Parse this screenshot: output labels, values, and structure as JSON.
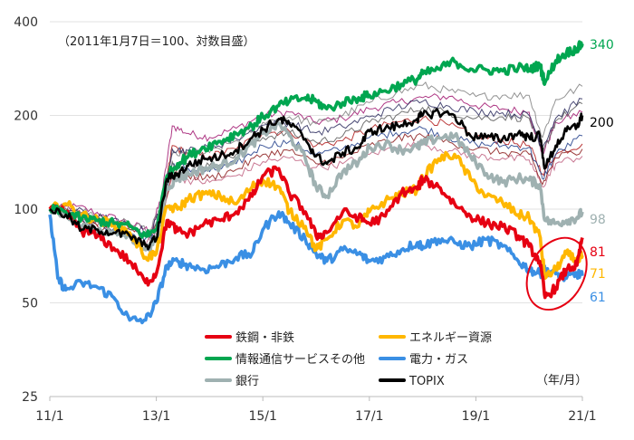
{
  "chart_data": {
    "type": "line",
    "note": "（2011年1月7日＝100、対数目盛）",
    "unit_label": "（年/月）",
    "y_scale": "log",
    "ylim": [
      25,
      400
    ],
    "y_ticks": [
      "25",
      "50",
      "100",
      "200",
      "400"
    ],
    "y_tick_values": [
      25,
      50,
      100,
      200,
      400
    ],
    "x_range": [
      2011.0,
      2021.0
    ],
    "x_ticks": [
      "11/1",
      "13/1",
      "15/1",
      "17/1",
      "19/1",
      "21/1"
    ],
    "x_tick_values": [
      2011.0,
      2013.0,
      2015.0,
      2017.0,
      2019.0,
      2021.0
    ],
    "series": [
      {
        "name": "鉄鋼・非鉄",
        "color": "#e60012",
        "end_label": "81",
        "x": [
          2011.0,
          2011.3,
          2011.6,
          2011.9,
          2012.2,
          2012.5,
          2012.8,
          2013.0,
          2013.2,
          2013.4,
          2013.6,
          2013.9,
          2014.2,
          2014.5,
          2014.8,
          2015.0,
          2015.3,
          2015.5,
          2015.8,
          2016.0,
          2016.2,
          2016.5,
          2016.8,
          2017.0,
          2017.3,
          2017.6,
          2017.9,
          2018.0,
          2018.3,
          2018.6,
          2018.9,
          2019.2,
          2019.5,
          2019.8,
          2020.0,
          2020.2,
          2020.3,
          2020.5,
          2020.7,
          2020.9,
          2021.0
        ],
        "values": [
          100,
          98,
          85,
          82,
          75,
          68,
          58,
          62,
          92,
          85,
          83,
          90,
          92,
          98,
          110,
          128,
          135,
          112,
          98,
          82,
          84,
          98,
          94,
          90,
          95,
          113,
          116,
          125,
          118,
          104,
          95,
          90,
          88,
          82,
          76,
          68,
          52,
          56,
          64,
          66,
          81
        ]
      },
      {
        "name": "エネルギー資源",
        "color": "#ffb700",
        "end_label": "71",
        "x": [
          2011.0,
          2011.3,
          2011.6,
          2011.9,
          2012.2,
          2012.5,
          2012.8,
          2013.0,
          2013.2,
          2013.4,
          2013.6,
          2013.9,
          2014.2,
          2014.5,
          2014.8,
          2015.0,
          2015.3,
          2015.5,
          2015.8,
          2016.0,
          2016.2,
          2016.5,
          2016.8,
          2017.0,
          2017.3,
          2017.6,
          2017.9,
          2018.0,
          2018.3,
          2018.6,
          2018.9,
          2019.2,
          2019.5,
          2019.8,
          2020.0,
          2020.2,
          2020.3,
          2020.5,
          2020.7,
          2020.9,
          2021.0
        ],
        "values": [
          100,
          104,
          96,
          92,
          90,
          84,
          70,
          72,
          102,
          100,
          108,
          112,
          110,
          104,
          118,
          124,
          118,
          98,
          88,
          74,
          80,
          92,
          88,
          98,
          106,
          112,
          116,
          126,
          145,
          150,
          125,
          110,
          105,
          96,
          94,
          82,
          60,
          64,
          72,
          68,
          71
        ]
      },
      {
        "name": "情報通信サービスその他",
        "color": "#00a650",
        "end_label": "340",
        "x": [
          2011.0,
          2011.3,
          2011.6,
          2011.9,
          2012.2,
          2012.5,
          2012.8,
          2013.0,
          2013.2,
          2013.4,
          2013.6,
          2013.9,
          2014.2,
          2014.5,
          2014.8,
          2015.0,
          2015.3,
          2015.5,
          2015.8,
          2016.0,
          2016.2,
          2016.5,
          2016.8,
          2017.0,
          2017.3,
          2017.6,
          2017.9,
          2018.0,
          2018.3,
          2018.6,
          2018.9,
          2019.2,
          2019.5,
          2019.8,
          2020.0,
          2020.2,
          2020.3,
          2020.5,
          2020.7,
          2020.9,
          2021.0
        ],
        "values": [
          100,
          98,
          93,
          92,
          90,
          88,
          82,
          86,
          128,
          140,
          148,
          158,
          165,
          175,
          185,
          198,
          215,
          222,
          228,
          222,
          210,
          220,
          228,
          232,
          240,
          252,
          262,
          272,
          282,
          298,
          282,
          280,
          278,
          285,
          282,
          290,
          255,
          300,
          318,
          328,
          340
        ]
      },
      {
        "name": "電力・ガス",
        "color": "#3a8fe4",
        "end_label": "61",
        "x": [
          2011.0,
          2011.15,
          2011.3,
          2011.6,
          2011.9,
          2012.2,
          2012.5,
          2012.8,
          2013.0,
          2013.2,
          2013.4,
          2013.6,
          2013.9,
          2014.2,
          2014.5,
          2014.8,
          2015.0,
          2015.3,
          2015.5,
          2015.8,
          2016.0,
          2016.2,
          2016.5,
          2016.8,
          2017.0,
          2017.3,
          2017.6,
          2017.9,
          2018.0,
          2018.3,
          2018.6,
          2018.9,
          2019.2,
          2019.5,
          2019.8,
          2020.0,
          2020.2,
          2020.3,
          2020.5,
          2020.7,
          2020.9,
          2021.0
        ],
        "values": [
          96,
          60,
          55,
          58,
          56,
          52,
          44,
          44,
          50,
          66,
          68,
          66,
          64,
          66,
          70,
          72,
          86,
          98,
          90,
          80,
          72,
          68,
          74,
          72,
          68,
          70,
          74,
          78,
          76,
          80,
          78,
          76,
          80,
          76,
          68,
          64,
          62,
          64,
          62,
          60,
          62,
          61
        ]
      },
      {
        "name": "銀行",
        "color": "#9fb1b1",
        "end_label": "98",
        "x": [
          2011.0,
          2011.3,
          2011.6,
          2011.9,
          2012.2,
          2012.5,
          2012.8,
          2013.0,
          2013.2,
          2013.4,
          2013.6,
          2013.9,
          2014.2,
          2014.5,
          2014.8,
          2015.0,
          2015.3,
          2015.5,
          2015.8,
          2016.0,
          2016.2,
          2016.5,
          2016.8,
          2017.0,
          2017.3,
          2017.6,
          2017.9,
          2018.0,
          2018.3,
          2018.6,
          2018.9,
          2019.2,
          2019.5,
          2019.8,
          2020.0,
          2020.2,
          2020.3,
          2020.5,
          2020.7,
          2020.9,
          2021.0
        ],
        "values": [
          100,
          96,
          88,
          86,
          84,
          82,
          74,
          80,
          118,
          125,
          130,
          135,
          138,
          146,
          162,
          175,
          188,
          172,
          145,
          118,
          110,
          132,
          142,
          158,
          162,
          155,
          158,
          162,
          170,
          172,
          148,
          130,
          122,
          126,
          124,
          120,
          92,
          90,
          92,
          94,
          98
        ]
      },
      {
        "name": "TOPIX",
        "color": "#000000",
        "end_label": "200",
        "x": [
          2011.0,
          2011.3,
          2011.6,
          2011.9,
          2012.2,
          2012.5,
          2012.8,
          2013.0,
          2013.2,
          2013.4,
          2013.6,
          2013.9,
          2014.2,
          2014.5,
          2014.8,
          2015.0,
          2015.3,
          2015.5,
          2015.8,
          2016.0,
          2016.2,
          2016.5,
          2016.8,
          2017.0,
          2017.3,
          2017.6,
          2017.9,
          2018.0,
          2018.3,
          2018.6,
          2018.9,
          2019.2,
          2019.5,
          2019.8,
          2020.0,
          2020.2,
          2020.3,
          2020.5,
          2020.7,
          2020.9,
          2021.0
        ],
        "values": [
          100,
          96,
          86,
          86,
          84,
          82,
          76,
          80,
          125,
          130,
          138,
          145,
          148,
          155,
          170,
          180,
          195,
          188,
          168,
          148,
          140,
          152,
          158,
          178,
          182,
          186,
          195,
          200,
          205,
          200,
          172,
          170,
          168,
          176,
          170,
          172,
          135,
          160,
          178,
          185,
          200
        ]
      }
    ],
    "background_series": [
      {
        "color": "#a0146e",
        "x": [
          2011.0,
          2011.5,
          2012.0,
          2012.5,
          2012.9,
          2013.1,
          2013.3,
          2013.6,
          2014.0,
          2014.5,
          2015.0,
          2015.5,
          2016.0,
          2016.5,
          2017.0,
          2017.5,
          2018.0,
          2018.5,
          2019.0,
          2019.5,
          2020.0,
          2020.25,
          2020.5,
          2021.0
        ],
        "values": [
          100,
          102,
          96,
          90,
          85,
          110,
          185,
          175,
          170,
          182,
          200,
          205,
          190,
          196,
          210,
          220,
          228,
          230,
          215,
          210,
          205,
          150,
          190,
          205
        ]
      },
      {
        "color": "#b01a1a",
        "x": [
          2011.0,
          2011.5,
          2012.0,
          2012.5,
          2012.9,
          2013.1,
          2013.3,
          2013.6,
          2014.0,
          2014.5,
          2015.0,
          2015.5,
          2016.0,
          2016.5,
          2017.0,
          2017.5,
          2018.0,
          2018.5,
          2019.0,
          2019.5,
          2020.0,
          2020.25,
          2020.5,
          2021.0
        ],
        "values": [
          100,
          98,
          92,
          86,
          82,
          100,
          160,
          150,
          148,
          156,
          176,
          178,
          160,
          166,
          180,
          190,
          196,
          186,
          170,
          166,
          160,
          130,
          150,
          162
        ]
      },
      {
        "color": "#1f3c88",
        "x": [
          2011.0,
          2011.5,
          2012.0,
          2012.5,
          2012.9,
          2013.1,
          2013.3,
          2013.6,
          2014.0,
          2014.5,
          2015.0,
          2015.5,
          2016.0,
          2016.5,
          2017.0,
          2017.5,
          2018.0,
          2018.5,
          2019.0,
          2019.5,
          2020.0,
          2020.25,
          2020.5,
          2021.0
        ],
        "values": [
          100,
          95,
          88,
          84,
          80,
          96,
          140,
          135,
          132,
          140,
          160,
          165,
          150,
          156,
          170,
          176,
          182,
          170,
          162,
          160,
          158,
          125,
          150,
          172
        ]
      },
      {
        "color": "#808080",
        "x": [
          2011.0,
          2011.5,
          2012.0,
          2012.5,
          2012.9,
          2013.1,
          2013.3,
          2013.6,
          2014.0,
          2014.5,
          2015.0,
          2015.5,
          2016.0,
          2016.5,
          2017.0,
          2017.5,
          2018.0,
          2018.5,
          2019.0,
          2019.5,
          2020.0,
          2020.25,
          2020.5,
          2021.0
        ],
        "values": [
          100,
          100,
          94,
          90,
          86,
          104,
          150,
          150,
          152,
          166,
          190,
          198,
          188,
          200,
          220,
          236,
          250,
          240,
          230,
          232,
          232,
          170,
          225,
          248
        ]
      },
      {
        "color": "#5a5a5a",
        "x": [
          2011.0,
          2011.5,
          2012.0,
          2012.5,
          2012.9,
          2013.1,
          2013.3,
          2013.6,
          2014.0,
          2014.5,
          2015.0,
          2015.5,
          2016.0,
          2016.5,
          2017.0,
          2017.5,
          2018.0,
          2018.5,
          2019.0,
          2019.5,
          2020.0,
          2020.25,
          2020.5,
          2021.0
        ],
        "values": [
          100,
          97,
          90,
          86,
          82,
          98,
          142,
          140,
          138,
          150,
          170,
          176,
          164,
          172,
          190,
          200,
          212,
          204,
          196,
          198,
          196,
          150,
          192,
          218
        ]
      },
      {
        "color": "#c06080",
        "x": [
          2011.0,
          2011.5,
          2012.0,
          2012.5,
          2012.9,
          2013.1,
          2013.3,
          2013.6,
          2014.0,
          2014.5,
          2015.0,
          2015.5,
          2016.0,
          2016.5,
          2017.0,
          2017.5,
          2018.0,
          2018.5,
          2019.0,
          2019.5,
          2020.0,
          2020.25,
          2020.5,
          2021.0
        ],
        "values": [
          100,
          96,
          88,
          82,
          78,
          94,
          128,
          124,
          122,
          128,
          142,
          146,
          136,
          140,
          150,
          158,
          162,
          154,
          148,
          146,
          144,
          118,
          140,
          148
        ]
      },
      {
        "color": "#2b2b5e",
        "x": [
          2011.0,
          2011.5,
          2012.0,
          2012.5,
          2012.9,
          2013.1,
          2013.3,
          2013.6,
          2014.0,
          2014.5,
          2015.0,
          2015.5,
          2016.0,
          2016.5,
          2017.0,
          2017.5,
          2018.0,
          2018.5,
          2019.0,
          2019.5,
          2020.0,
          2020.25,
          2020.5,
          2021.0
        ],
        "values": [
          100,
          99,
          94,
          88,
          84,
          104,
          156,
          154,
          158,
          168,
          186,
          190,
          176,
          184,
          198,
          212,
          222,
          214,
          206,
          204,
          200,
          158,
          196,
          226
        ]
      },
      {
        "color": "#8b1a1a",
        "x": [
          2011.0,
          2011.5,
          2012.0,
          2012.5,
          2012.9,
          2013.1,
          2013.3,
          2013.6,
          2014.0,
          2014.5,
          2015.0,
          2015.5,
          2016.0,
          2016.5,
          2017.0,
          2017.5,
          2018.0,
          2018.5,
          2019.0,
          2019.5,
          2020.0,
          2020.25,
          2020.5,
          2021.0
        ],
        "values": [
          100,
          94,
          86,
          82,
          76,
          92,
          132,
          128,
          126,
          134,
          150,
          154,
          140,
          146,
          160,
          168,
          172,
          164,
          156,
          152,
          150,
          120,
          146,
          156
        ]
      }
    ]
  },
  "legend": {
    "items": [
      {
        "label": "鉄鋼・非鉄",
        "color": "#e60012"
      },
      {
        "label": "エネルギー資源",
        "color": "#ffb700"
      },
      {
        "label": "情報通信サービスその他",
        "color": "#00a650"
      },
      {
        "label": "電力・ガス",
        "color": "#3a8fe4"
      },
      {
        "label": "銀行",
        "color": "#9fb1b1"
      },
      {
        "label": "TOPIX",
        "color": "#000000"
      }
    ]
  },
  "highlight": {
    "color": "#e60012",
    "x_center": 2020.45,
    "y_center": 62
  }
}
